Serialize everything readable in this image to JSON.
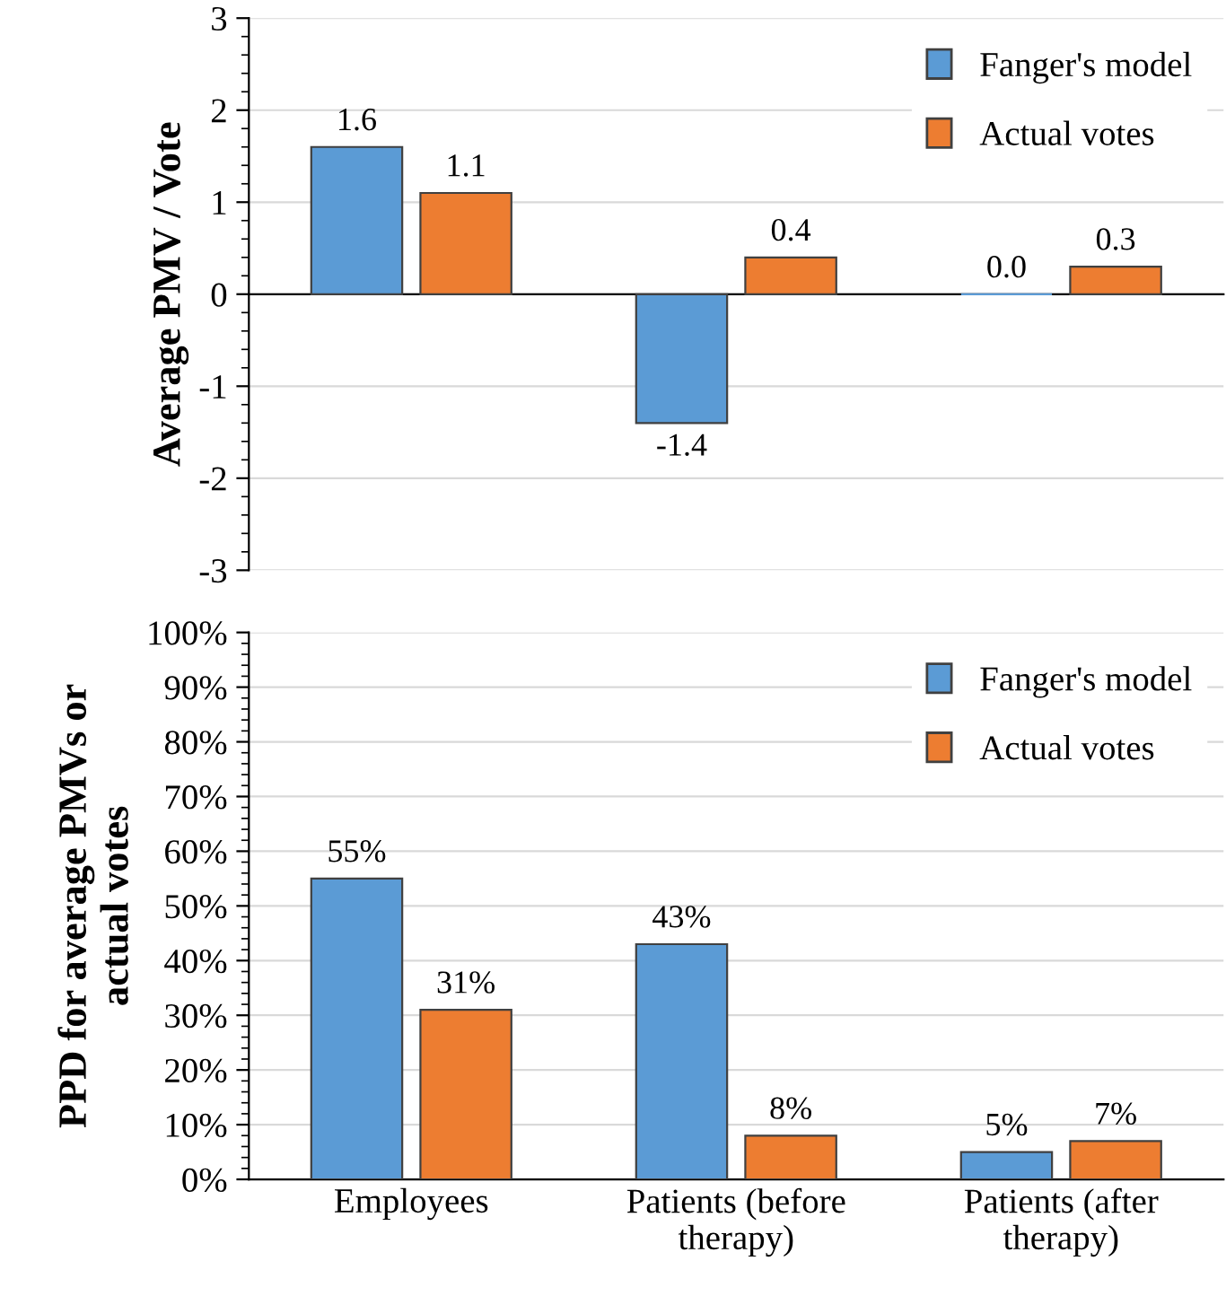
{
  "chart_data": [
    {
      "type": "bar",
      "categories": [
        null,
        null,
        null
      ],
      "ylabel": "Average PMV / Vote",
      "ylim": [
        -3,
        3
      ],
      "yticks": [
        -3,
        -2,
        -1,
        0,
        1,
        2,
        3
      ],
      "grid": "y",
      "legend": "top right",
      "tick_labels": "y",
      "series": [
        {
          "name": "Fanger's model",
          "color": "#5b9bd5",
          "values": [
            1.6,
            -1.4,
            0.0
          ],
          "value_labels": [
            "1.6",
            "-1.4",
            "0.0"
          ]
        },
        {
          "name": "Actual votes",
          "color": "#ed7d31",
          "values": [
            1.1,
            0.4,
            0.3
          ],
          "value_labels": [
            "1.1",
            "0.4",
            "0.3"
          ]
        }
      ]
    },
    {
      "type": "bar",
      "categories": [
        "Employees",
        "Patients (before\ntherapy)",
        "Patients (after\ntherapy)"
      ],
      "ylabel": "PPD for average PMVs or\nactual votes",
      "ylim": [
        0,
        100
      ],
      "yticks": [
        {
          "value": 0,
          "label": "0%"
        },
        {
          "value": 10,
          "label": "10%"
        },
        {
          "value": 20,
          "label": "20%"
        },
        {
          "value": 30,
          "label": "30%"
        },
        {
          "value": 40,
          "label": "40%"
        },
        {
          "value": 50,
          "label": "50%"
        },
        {
          "value": 60,
          "label": "60%"
        },
        {
          "value": 70,
          "label": "70%"
        },
        {
          "value": 80,
          "label": "80%"
        },
        {
          "value": 90,
          "label": "90%"
        },
        {
          "value": 100,
          "label": "100%"
        }
      ],
      "grid": "y",
      "legend": "top right",
      "series": [
        {
          "name": "Fanger's model",
          "color": "#5b9bd5",
          "values": [
            55,
            43,
            5
          ],
          "value_labels": [
            "55%",
            "43%",
            "5%"
          ]
        },
        {
          "name": "Actual votes",
          "color": "#ed7d31",
          "values": [
            31,
            8,
            7
          ],
          "value_labels": [
            "31%",
            "8%",
            "7%"
          ]
        }
      ]
    }
  ]
}
